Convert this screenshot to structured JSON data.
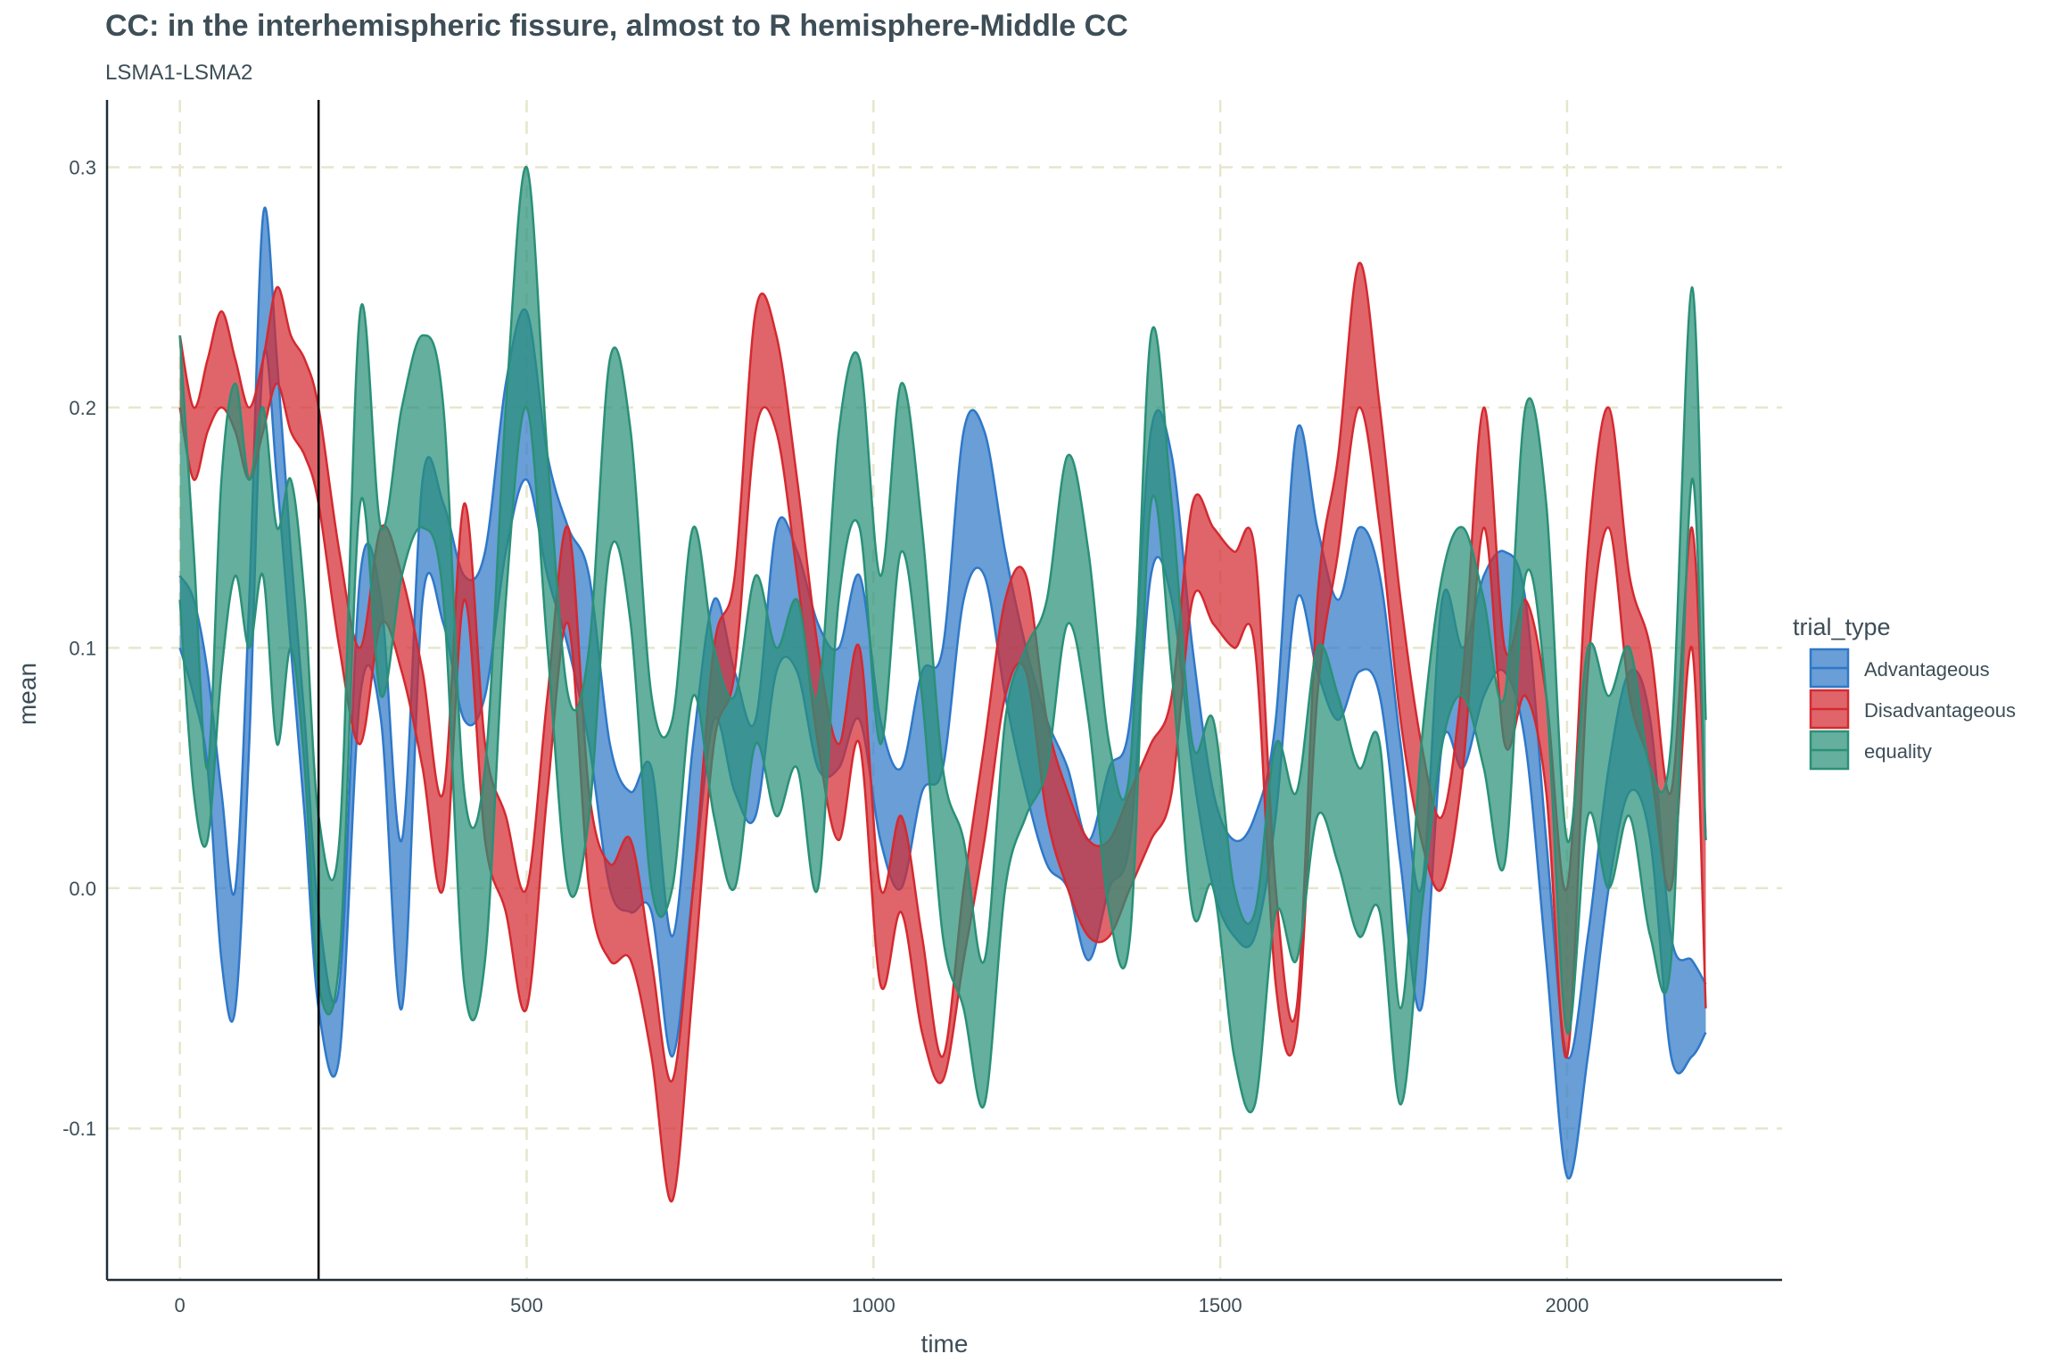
{
  "chart_data": {
    "type": "area",
    "title": "CC: in the interhemispheric fissure, almost to R hemisphere-Middle CC",
    "subtitle": "LSMA1-LSMA2",
    "xlabel": "time",
    "ylabel": "mean",
    "xlim": [
      -105,
      2310
    ],
    "ylim": [
      -0.163,
      0.328
    ],
    "x_ticks": [
      0,
      500,
      1000,
      1500,
      2000
    ],
    "x_tick_labels": [
      "0",
      "500",
      "1000",
      "1500",
      "2000"
    ],
    "y_ticks": [
      -0.1,
      0.0,
      0.1,
      0.2,
      0.3
    ],
    "y_tick_labels": [
      "-0.1",
      "0.0",
      "0.1",
      "0.2",
      "0.3"
    ],
    "vline_x": 200,
    "grid": true,
    "legend_title": "trial_type",
    "legend_position": "right",
    "x": [
      0,
      20,
      40,
      60,
      80,
      100,
      120,
      140,
      160,
      180,
      200,
      230,
      260,
      290,
      320,
      350,
      380,
      410,
      440,
      470,
      500,
      530,
      560,
      590,
      620,
      650,
      680,
      710,
      740,
      770,
      800,
      830,
      860,
      890,
      920,
      950,
      980,
      1010,
      1040,
      1070,
      1100,
      1130,
      1160,
      1190,
      1220,
      1250,
      1280,
      1310,
      1340,
      1370,
      1400,
      1430,
      1460,
      1490,
      1520,
      1550,
      1580,
      1610,
      1640,
      1670,
      1700,
      1730,
      1760,
      1790,
      1820,
      1850,
      1880,
      1910,
      1940,
      1970,
      2000,
      2030,
      2060,
      2090,
      2120,
      2150,
      2180,
      2200
    ],
    "series": [
      {
        "name": "Advantageous",
        "color": "#2f78c8",
        "upper": [
          0.13,
          0.12,
          0.09,
          0.04,
          0.0,
          0.12,
          0.28,
          0.22,
          0.14,
          0.07,
          -0.01,
          -0.04,
          0.13,
          0.12,
          0.02,
          0.17,
          0.16,
          0.13,
          0.14,
          0.21,
          0.24,
          0.18,
          0.15,
          0.13,
          0.06,
          0.04,
          0.05,
          -0.02,
          0.06,
          0.12,
          0.09,
          0.07,
          0.15,
          0.14,
          0.11,
          0.1,
          0.13,
          0.07,
          0.05,
          0.09,
          0.1,
          0.19,
          0.19,
          0.14,
          0.1,
          0.07,
          0.05,
          0.02,
          0.05,
          0.07,
          0.19,
          0.18,
          0.1,
          0.04,
          0.02,
          0.03,
          0.07,
          0.19,
          0.15,
          0.12,
          0.15,
          0.13,
          0.06,
          0.0,
          0.12,
          0.1,
          0.13,
          0.14,
          0.12,
          0.02,
          -0.07,
          -0.02,
          0.05,
          0.09,
          0.07,
          -0.02,
          -0.03,
          -0.04
        ],
        "lower": [
          0.1,
          0.08,
          0.05,
          -0.03,
          -0.05,
          0.06,
          0.22,
          0.17,
          0.1,
          0.03,
          -0.05,
          -0.07,
          0.08,
          0.07,
          -0.05,
          0.12,
          0.11,
          0.07,
          0.08,
          0.14,
          0.17,
          0.13,
          0.1,
          0.06,
          0.0,
          -0.01,
          -0.01,
          -0.07,
          0.0,
          0.07,
          0.04,
          0.03,
          0.09,
          0.09,
          0.05,
          0.05,
          0.07,
          0.02,
          0.0,
          0.04,
          0.05,
          0.12,
          0.13,
          0.08,
          0.04,
          0.01,
          0.0,
          -0.03,
          0.0,
          0.02,
          0.13,
          0.12,
          0.05,
          0.0,
          -0.02,
          -0.02,
          0.03,
          0.12,
          0.09,
          0.07,
          0.09,
          0.08,
          0.01,
          -0.05,
          0.06,
          0.05,
          0.08,
          0.09,
          0.06,
          -0.03,
          -0.12,
          -0.07,
          0.0,
          0.04,
          0.02,
          -0.07,
          -0.07,
          -0.06
        ]
      },
      {
        "name": "Disadvantageous",
        "color": "#d42a30",
        "upper": [
          0.23,
          0.2,
          0.22,
          0.24,
          0.22,
          0.2,
          0.22,
          0.25,
          0.23,
          0.22,
          0.2,
          0.14,
          0.1,
          0.15,
          0.13,
          0.09,
          0.04,
          0.16,
          0.06,
          0.03,
          0.0,
          0.08,
          0.15,
          0.04,
          0.01,
          0.02,
          -0.03,
          -0.08,
          0.0,
          0.1,
          0.13,
          0.24,
          0.23,
          0.17,
          0.1,
          0.06,
          0.1,
          0.0,
          0.03,
          -0.02,
          -0.07,
          0.0,
          0.06,
          0.12,
          0.13,
          0.07,
          0.04,
          0.02,
          0.02,
          0.04,
          0.06,
          0.08,
          0.16,
          0.15,
          0.14,
          0.14,
          0.0,
          -0.05,
          0.12,
          0.18,
          0.26,
          0.2,
          0.12,
          0.06,
          0.03,
          0.09,
          0.2,
          0.1,
          0.12,
          0.08,
          0.0,
          0.14,
          0.2,
          0.13,
          0.1,
          0.04,
          0.15,
          0.02
        ],
        "lower": [
          0.2,
          0.17,
          0.19,
          0.2,
          0.19,
          0.17,
          0.19,
          0.21,
          0.19,
          0.18,
          0.16,
          0.1,
          0.06,
          0.11,
          0.09,
          0.05,
          0.0,
          0.12,
          0.02,
          -0.01,
          -0.05,
          0.04,
          0.11,
          0.0,
          -0.03,
          -0.03,
          -0.07,
          -0.13,
          -0.04,
          0.06,
          0.09,
          0.19,
          0.19,
          0.13,
          0.06,
          0.02,
          0.06,
          -0.04,
          -0.01,
          -0.06,
          -0.08,
          -0.03,
          0.02,
          0.08,
          0.09,
          0.03,
          0.0,
          -0.02,
          -0.02,
          0.0,
          0.02,
          0.04,
          0.12,
          0.11,
          0.1,
          0.1,
          -0.04,
          -0.06,
          0.08,
          0.14,
          0.2,
          0.15,
          0.07,
          0.02,
          0.0,
          0.05,
          0.15,
          0.06,
          0.08,
          0.04,
          -0.07,
          0.09,
          0.15,
          0.08,
          0.05,
          0.0,
          0.1,
          -0.05
        ]
      },
      {
        "name": "equality",
        "color": "#2a9078",
        "upper": [
          0.23,
          0.14,
          0.05,
          0.17,
          0.21,
          0.17,
          0.2,
          0.15,
          0.17,
          0.12,
          0.03,
          0.02,
          0.24,
          0.15,
          0.2,
          0.23,
          0.2,
          0.04,
          0.05,
          0.2,
          0.3,
          0.18,
          0.08,
          0.1,
          0.22,
          0.19,
          0.08,
          0.07,
          0.15,
          0.1,
          0.08,
          0.13,
          0.1,
          0.12,
          0.08,
          0.19,
          0.22,
          0.13,
          0.21,
          0.15,
          0.05,
          0.02,
          -0.03,
          0.07,
          0.1,
          0.12,
          0.18,
          0.14,
          0.06,
          0.05,
          0.23,
          0.16,
          0.06,
          0.07,
          0.0,
          -0.01,
          0.06,
          0.04,
          0.1,
          0.08,
          0.05,
          0.06,
          -0.05,
          0.06,
          0.13,
          0.15,
          0.12,
          0.08,
          0.2,
          0.16,
          0.02,
          0.1,
          0.08,
          0.1,
          0.05,
          0.06,
          0.25,
          0.07
        ],
        "lower": [
          0.12,
          0.04,
          0.02,
          0.09,
          0.13,
          0.1,
          0.13,
          0.06,
          0.1,
          0.05,
          -0.04,
          -0.03,
          0.16,
          0.08,
          0.13,
          0.15,
          0.12,
          -0.04,
          -0.03,
          0.12,
          0.2,
          0.1,
          0.0,
          0.03,
          0.14,
          0.11,
          0.0,
          0.0,
          0.08,
          0.03,
          0.0,
          0.06,
          0.03,
          0.05,
          0.0,
          0.12,
          0.15,
          0.06,
          0.14,
          0.08,
          -0.02,
          -0.05,
          -0.09,
          0.0,
          0.03,
          0.05,
          0.11,
          0.07,
          -0.01,
          -0.02,
          0.16,
          0.09,
          -0.01,
          0.0,
          -0.07,
          -0.09,
          -0.01,
          -0.03,
          0.03,
          0.01,
          -0.02,
          -0.01,
          -0.09,
          -0.01,
          0.06,
          0.08,
          0.05,
          0.01,
          0.13,
          0.08,
          -0.06,
          0.03,
          0.0,
          0.03,
          -0.02,
          -0.03,
          0.17,
          0.02
        ]
      }
    ]
  }
}
